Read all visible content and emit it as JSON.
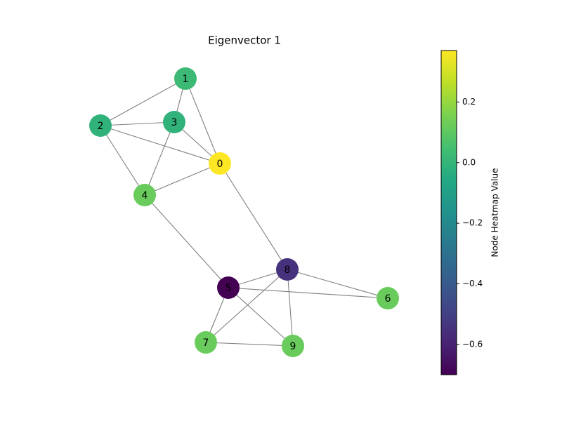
{
  "chart_data": {
    "type": "network",
    "title": "Eigenvector 1",
    "nodes": [
      {
        "label": "0",
        "value": 0.37
      },
      {
        "label": "1",
        "value": 0.02
      },
      {
        "label": "2",
        "value": -0.01
      },
      {
        "label": "3",
        "value": -0.01
      },
      {
        "label": "4",
        "value": 0.12
      },
      {
        "label": "5",
        "value": -0.7
      },
      {
        "label": "6",
        "value": 0.12
      },
      {
        "label": "7",
        "value": 0.12
      },
      {
        "label": "8",
        "value": -0.55
      },
      {
        "label": "9",
        "value": 0.12
      }
    ],
    "edges": [
      [
        1,
        2
      ],
      [
        1,
        3
      ],
      [
        1,
        0
      ],
      [
        2,
        3
      ],
      [
        2,
        0
      ],
      [
        2,
        4
      ],
      [
        3,
        0
      ],
      [
        3,
        4
      ],
      [
        4,
        0
      ],
      [
        4,
        5
      ],
      [
        0,
        8
      ],
      [
        8,
        5
      ],
      [
        8,
        6
      ],
      [
        8,
        7
      ],
      [
        8,
        9
      ],
      [
        5,
        6
      ],
      [
        5,
        7
      ],
      [
        5,
        9
      ],
      [
        7,
        9
      ]
    ],
    "edge_color": "#808080",
    "colormap": "viridis",
    "colorbar_label": "Node Heatmap Value",
    "clim": [
      -0.7,
      0.37
    ],
    "colorbar_ticks": [
      {
        "value": -0.6,
        "label": "−0.6"
      },
      {
        "value": -0.4,
        "label": "−0.4"
      },
      {
        "value": -0.2,
        "label": "−0.2"
      },
      {
        "value": 0,
        "label": "0.0"
      },
      0.2
    ]
  }
}
